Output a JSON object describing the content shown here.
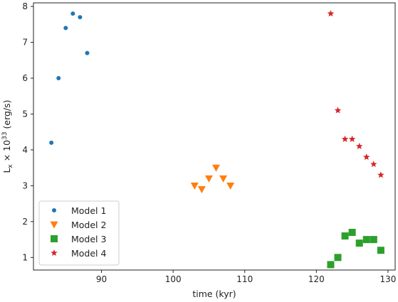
{
  "chart_data": {
    "type": "scatter",
    "title": "",
    "xlabel": "time (kyr)",
    "ylabel": "Lₓ × 10³³ (erg/s)",
    "ylabel_parts": {
      "base": "L",
      "sub": "x",
      "times": " × 10",
      "sup": "33",
      "unit": " (erg/s)"
    },
    "xlim": [
      80.5,
      131
    ],
    "ylim": [
      0.65,
      8.1
    ],
    "xticks": [
      90,
      100,
      110,
      120,
      130
    ],
    "yticks": [
      1,
      2,
      3,
      4,
      5,
      6,
      7,
      8
    ],
    "grid": false,
    "legend_position": "lower left",
    "series": [
      {
        "name": "Model 1",
        "marker": "circle",
        "color": "#1f77b4",
        "x": [
          83,
          84,
          85,
          86,
          87,
          88
        ],
        "y": [
          4.2,
          6.0,
          7.4,
          7.8,
          7.7,
          6.7
        ]
      },
      {
        "name": "Model 2",
        "marker": "triangle-down",
        "color": "#ff7f0e",
        "x": [
          103,
          104,
          105,
          106,
          107,
          108
        ],
        "y": [
          3.0,
          2.9,
          3.2,
          3.5,
          3.2,
          3.0
        ]
      },
      {
        "name": "Model 3",
        "marker": "square",
        "color": "#2ca02c",
        "x": [
          122,
          123,
          124,
          125,
          126,
          127,
          128,
          129
        ],
        "y": [
          0.8,
          1.0,
          1.6,
          1.7,
          1.4,
          1.5,
          1.5,
          1.2
        ]
      },
      {
        "name": "Model 4",
        "marker": "star",
        "color": "#d62728",
        "x": [
          122,
          123,
          124,
          125,
          126,
          127,
          128,
          129
        ],
        "y": [
          7.8,
          5.1,
          4.3,
          4.3,
          4.1,
          3.8,
          3.6,
          3.3
        ]
      }
    ]
  }
}
